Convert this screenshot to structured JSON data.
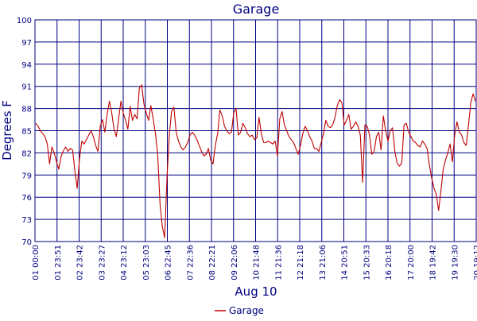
{
  "chart_data": {
    "type": "line",
    "title": "Garage",
    "xlabel": "Aug 10",
    "ylabel": "Degrees F",
    "ylim": [
      70,
      100
    ],
    "yticks": [
      70,
      73,
      76,
      79,
      82,
      85,
      88,
      91,
      94,
      97,
      100
    ],
    "x_ticks": [
      "01 00:00",
      "01 23:51",
      "02 23:42",
      "03 23:27",
      "04 23:12",
      "05 23:03",
      "06 22:45",
      "07 22:36",
      "08 22:21",
      "09 22:06",
      "10 21:48",
      "11 21:36",
      "12 21:18",
      "13 21:06",
      "14 20:51",
      "15 20:33",
      "16 20:18",
      "17 20:00",
      "18 19:42",
      "19 19:30",
      "20 19:12"
    ],
    "grid": true,
    "legend": {
      "position": "bottom",
      "entries": [
        "Garage"
      ]
    },
    "series": [
      {
        "name": "Garage",
        "color": "#c00000",
        "values": [
          86,
          85.6,
          85,
          84.6,
          84.2,
          83.2,
          80.5,
          82.8,
          82,
          80.8,
          79.8,
          81.5,
          82.3,
          82.8,
          82.2,
          82.6,
          82.4,
          79.5,
          77.2,
          81.2,
          83.6,
          83.2,
          83.8,
          84.4,
          85,
          84.2,
          83,
          82.2,
          85.6,
          86.5,
          84.8,
          87.2,
          89,
          87.4,
          85.2,
          84.2,
          86.6,
          89,
          87.4,
          86.4,
          85.2,
          88.3,
          86.4,
          87.2,
          86.6,
          90.8,
          91.2,
          88.6,
          87.4,
          86.4,
          88.4,
          86.6,
          84.6,
          81.6,
          75,
          72,
          70.5,
          78.6,
          84.4,
          87.6,
          88.2,
          84.8,
          83.6,
          82.8,
          82.4,
          82.8,
          83.4,
          84.4,
          84.8,
          84.4,
          83.8,
          83,
          82.2,
          81.6,
          81.8,
          82.6,
          81,
          80.5,
          83,
          84.6,
          87.8,
          87,
          85.6,
          85,
          84.6,
          84.8,
          87.4,
          88,
          84.4,
          84.8,
          86,
          85.4,
          84.6,
          84.2,
          84.4,
          83.8,
          84,
          86.8,
          84.6,
          83.4,
          83.4,
          83.6,
          83.4,
          83.2,
          83.6,
          81.6,
          86.6,
          87.6,
          85.8,
          85,
          84.2,
          83.8,
          83.4,
          82.6,
          81.8,
          83,
          84.6,
          85.6,
          85,
          84.2,
          83.6,
          82.6,
          82.6,
          82.2,
          83.4,
          84.6,
          86.4,
          85.6,
          85.4,
          85.8,
          86.8,
          88.4,
          89.2,
          88.8,
          85.8,
          86.4,
          87.2,
          85.2,
          85.6,
          86.2,
          85.6,
          84.4,
          78,
          85.8,
          85.6,
          84.4,
          81.8,
          82.2,
          84.2,
          84.8,
          82.4,
          87,
          85,
          83.6,
          85,
          85.4,
          82.2,
          80.6,
          80.2,
          80.6,
          85.8,
          86,
          84.8,
          84.2,
          83.6,
          83.4,
          83,
          82.8,
          83.6,
          83.2,
          82.6,
          80.4,
          78.6,
          77.2,
          76.4,
          74.2,
          76.8,
          79.8,
          81,
          82,
          83.2,
          80.8,
          84.4,
          86.2,
          84.8,
          84.4,
          83.4,
          83,
          85.8,
          88.8,
          90,
          89
        ]
      }
    ]
  }
}
